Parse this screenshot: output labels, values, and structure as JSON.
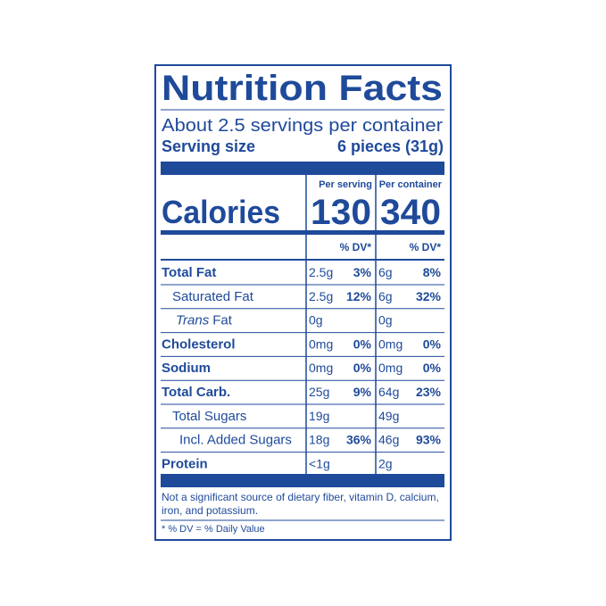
{
  "title": "Nutrition Facts",
  "servings": "About 2.5 servings per container",
  "serving_size": {
    "label": "Serving size",
    "value": "6 pieces (31g)"
  },
  "calories": {
    "label": "Calories"
  },
  "columns": [
    {
      "header": "Per serving",
      "calories": "130",
      "dv_header": "% DV*"
    },
    {
      "header": "Per container",
      "calories": "340",
      "dv_header": "% DV*"
    }
  ],
  "rows": [
    {
      "name": "Total Fat",
      "values": [
        "2.5g",
        "3%",
        "6g",
        "8%"
      ]
    },
    {
      "name": "Saturated Fat",
      "values": [
        "2.5g",
        "12%",
        "6g",
        "32%"
      ]
    },
    {
      "name_italic": "Trans",
      "name": "Fat",
      "values": [
        "0g",
        null,
        "0g",
        null
      ]
    },
    {
      "name": "Cholesterol",
      "values": [
        "0mg",
        "0%",
        "0mg",
        "0%"
      ]
    },
    {
      "name": "Sodium",
      "values": [
        "0mg",
        "0%",
        "0mg",
        "0%"
      ]
    },
    {
      "name": "Total Carb.",
      "values": [
        "25g",
        "9%",
        "64g",
        "23%"
      ]
    },
    {
      "name": "Total Sugars",
      "values": [
        "19g",
        null,
        "49g",
        null
      ]
    },
    {
      "name": "Incl. Added Sugars",
      "values": [
        "18g",
        "36%",
        "46g",
        "93%"
      ]
    },
    {
      "name": "Protein",
      "values": [
        "<1g",
        null,
        "2g",
        null
      ]
    }
  ],
  "footnote": [
    "Not a significant source of dietary fiber, vitamin D, calcium,",
    "iron, and potassium."
  ],
  "dv_note": "* % DV = % Daily Value"
}
